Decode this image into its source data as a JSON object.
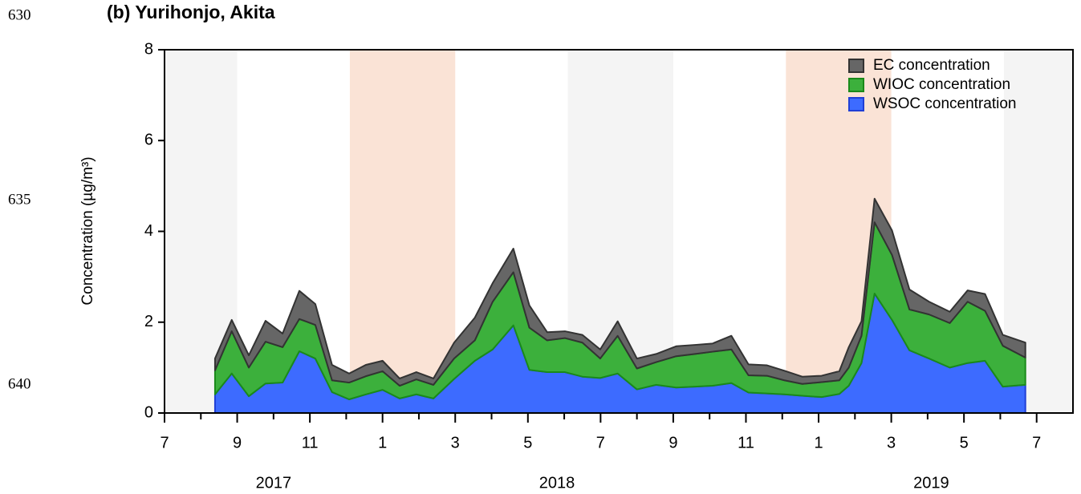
{
  "line_numbers": [
    "630",
    "635",
    "640"
  ],
  "chart_data": {
    "type": "stacked_area",
    "title": "(b) Yurihonjo, Akita",
    "y_label": "Concentration (µg/m³)",
    "x": [
      1.39,
      1.85,
      2.32,
      2.78,
      3.25,
      3.71,
      4.15,
      4.61,
      5.08,
      5.54,
      6.0,
      6.47,
      6.93,
      7.4,
      7.97,
      8.54,
      9.03,
      9.6,
      10.04,
      10.53,
      11.02,
      11.5,
      11.99,
      12.47,
      13.0,
      13.53,
      14.08,
      14.6,
      15.08,
      15.6,
      16.07,
      16.58,
      17.06,
      17.55,
      18.08,
      18.57,
      18.83,
      19.18,
      19.54,
      20.02,
      20.5,
      21.04,
      21.61,
      22.1,
      22.58,
      23.07,
      23.69
    ],
    "series": [
      {
        "name": "WSOC concentration",
        "color": "#3d6bff",
        "edge": "#1f3fd6",
        "values": [
          0.41,
          0.87,
          0.37,
          0.65,
          0.67,
          1.36,
          1.2,
          0.46,
          0.3,
          0.41,
          0.51,
          0.32,
          0.41,
          0.32,
          0.75,
          1.15,
          1.4,
          1.93,
          0.95,
          0.9,
          0.9,
          0.8,
          0.77,
          0.87,
          0.52,
          0.62,
          0.56,
          0.58,
          0.6,
          0.66,
          0.45,
          0.43,
          0.41,
          0.38,
          0.35,
          0.42,
          0.6,
          1.1,
          2.63,
          2.05,
          1.38,
          1.2,
          1.0,
          1.1,
          1.15,
          0.58,
          0.62
        ]
      },
      {
        "name": "WIOC concentration",
        "color": "#3cb03c",
        "edge": "#1a8a1a",
        "values": [
          0.53,
          0.93,
          0.63,
          0.92,
          0.78,
          0.71,
          0.74,
          0.26,
          0.37,
          0.4,
          0.41,
          0.28,
          0.33,
          0.3,
          0.45,
          0.45,
          1.05,
          1.17,
          0.93,
          0.7,
          0.75,
          0.75,
          0.43,
          0.83,
          0.46,
          0.5,
          0.69,
          0.72,
          0.75,
          0.74,
          0.38,
          0.39,
          0.31,
          0.26,
          0.33,
          0.3,
          0.4,
          0.6,
          1.57,
          1.43,
          0.9,
          0.97,
          0.98,
          1.35,
          1.1,
          0.9,
          0.6
        ]
      },
      {
        "name": "EC concentration",
        "color": "#666666",
        "edge": "#333333",
        "values": [
          0.26,
          0.25,
          0.27,
          0.46,
          0.3,
          0.62,
          0.46,
          0.34,
          0.2,
          0.25,
          0.23,
          0.16,
          0.16,
          0.14,
          0.35,
          0.5,
          0.41,
          0.52,
          0.49,
          0.18,
          0.15,
          0.17,
          0.2,
          0.32,
          0.22,
          0.18,
          0.22,
          0.2,
          0.18,
          0.3,
          0.24,
          0.23,
          0.21,
          0.16,
          0.14,
          0.2,
          0.45,
          0.32,
          0.52,
          0.54,
          0.44,
          0.28,
          0.25,
          0.25,
          0.37,
          0.24,
          0.33
        ]
      }
    ],
    "xlim": [
      0,
      25
    ],
    "ylim": [
      0,
      8
    ],
    "yticks": [
      0,
      2,
      4,
      6,
      8
    ],
    "xticks": [
      {
        "value": 0,
        "label": "7"
      },
      {
        "value": 2,
        "label": "9"
      },
      {
        "value": 4,
        "label": "11"
      },
      {
        "value": 6,
        "label": "1"
      },
      {
        "value": 8,
        "label": "3"
      },
      {
        "value": 10,
        "label": "5"
      },
      {
        "value": 12,
        "label": "7"
      },
      {
        "value": 14,
        "label": "9"
      },
      {
        "value": 16,
        "label": "11"
      },
      {
        "value": 18,
        "label": "1"
      },
      {
        "value": 20,
        "label": "3"
      },
      {
        "value": 22,
        "label": "5"
      },
      {
        "value": 24,
        "label": "7"
      }
    ],
    "xminor": [
      1,
      3,
      5,
      7,
      9,
      11,
      13,
      15,
      17,
      19,
      21,
      23
    ],
    "year_labels": [
      {
        "value": 3,
        "label": "2017"
      },
      {
        "value": 10.8,
        "label": "2018"
      },
      {
        "value": 21.1,
        "label": "2019"
      }
    ],
    "shaded_periods": [
      {
        "start": 0,
        "end": 2,
        "color": "#f4f4f4"
      },
      {
        "start": 5.1,
        "end": 8,
        "color": "#fae3d6"
      },
      {
        "start": 11.1,
        "end": 14,
        "color": "#f4f4f4"
      },
      {
        "start": 17.1,
        "end": 20,
        "color": "#fae3d6"
      },
      {
        "start": 23.1,
        "end": 25,
        "color": "#f4f4f4"
      }
    ],
    "legend": "upper right"
  }
}
